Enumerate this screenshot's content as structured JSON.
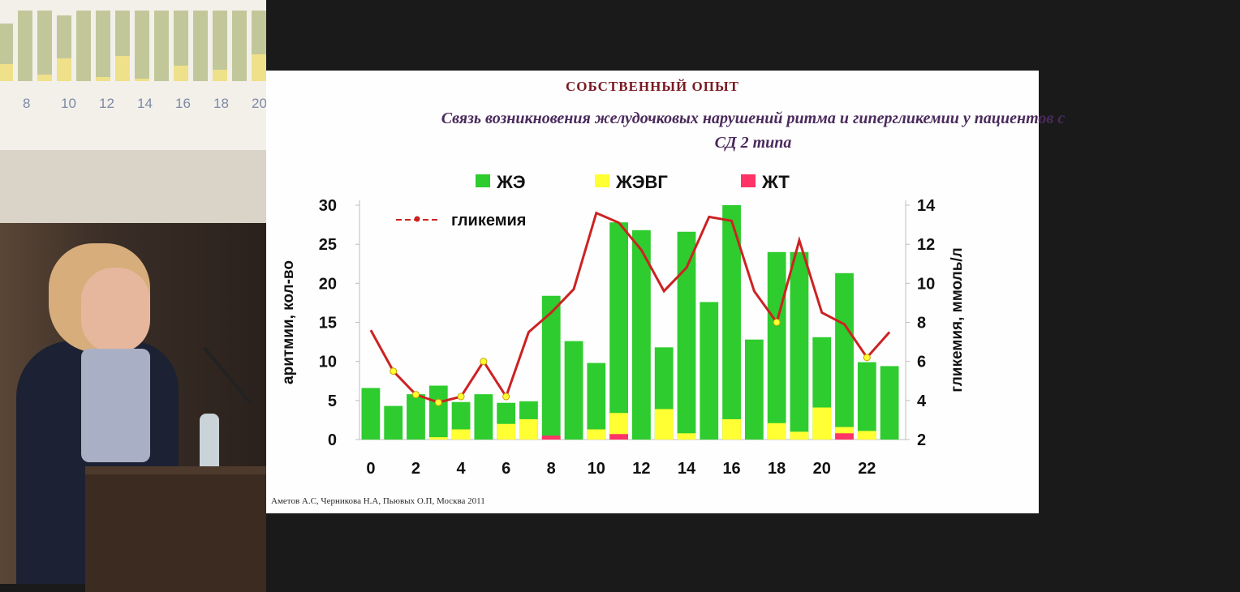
{
  "background_slide": {
    "x_ticks": [
      "8",
      "10",
      "12",
      "14",
      "16",
      "18",
      "20"
    ],
    "green_levels": [
      0.75,
      0.92,
      0.92,
      0.85,
      0.92,
      0.92,
      0.92,
      0.92,
      0.92,
      0.92,
      0.92,
      0.92,
      0.92,
      0.92
    ],
    "yellow_levels": [
      0.22,
      0.0,
      0.08,
      0.3,
      0.0,
      0.05,
      0.33,
      0.03,
      0.0,
      0.2,
      0.0,
      0.15,
      0.0,
      0.35
    ]
  },
  "slide": {
    "header": "СОБСТВЕННЫЙ ОПЫТ",
    "title": "Связь возникновения желудочковых нарушений ритма  и гипергликемии у пациентов с\nСД 2 типа",
    "citation": "Аметов А.С, Черникова Н.А, Пьювых О.П,  Москва 2011"
  },
  "chart_data": {
    "type": "bar",
    "x": [
      0,
      1,
      2,
      3,
      4,
      5,
      6,
      7,
      8,
      9,
      10,
      11,
      12,
      13,
      14,
      15,
      16,
      17,
      18,
      19,
      20,
      21,
      22,
      23
    ],
    "x_tick_labels": [
      "0",
      "2",
      "4",
      "6",
      "8",
      "10",
      "12",
      "14",
      "16",
      "18",
      "20",
      "22"
    ],
    "y_left_ticks": [
      "0",
      "5",
      "10",
      "15",
      "20",
      "25",
      "30"
    ],
    "y_right_ticks": [
      "2",
      "4",
      "6",
      "8",
      "10",
      "12",
      "14"
    ],
    "ylabel_left": "аритмии, кол-во",
    "ylabel_right": "гликемия, ммоль/л",
    "ylim_left": [
      0,
      30
    ],
    "ylim_right": [
      2,
      14
    ],
    "stacked": false,
    "series": [
      {
        "name": "ЖЭ",
        "color": "#2ecc2e",
        "values": [
          6.6,
          4.3,
          5.8,
          6.9,
          4.8,
          5.8,
          4.7,
          4.9,
          18.4,
          12.6,
          9.8,
          27.8,
          26.8,
          11.8,
          26.6,
          17.6,
          30.0,
          12.8,
          24.0,
          24.0,
          13.1,
          21.3,
          9.9,
          9.4
        ]
      },
      {
        "name": "ЖЭВГ",
        "color": "#ffff33",
        "values": [
          0,
          0,
          0,
          0.3,
          1.3,
          0,
          2.0,
          2.6,
          0,
          0,
          1.3,
          3.4,
          0,
          3.9,
          0.8,
          0,
          2.6,
          0,
          2.1,
          1.0,
          4.1,
          1.6,
          1.1,
          0
        ]
      },
      {
        "name": "ЖТ",
        "color": "#ff3366",
        "values": [
          0,
          0,
          0,
          0,
          0,
          0,
          0,
          0,
          0.5,
          0,
          0,
          0.7,
          0,
          0,
          0,
          0,
          0,
          0,
          0,
          0,
          0,
          0.8,
          0,
          0
        ]
      },
      {
        "name": "гликемия",
        "color": "#cc2222",
        "axis": "right",
        "type": "line",
        "values": [
          7.6,
          5.5,
          4.3,
          3.9,
          4.2,
          6.0,
          4.2,
          7.5,
          8.5,
          9.7,
          13.6,
          13.1,
          11.7,
          9.6,
          10.8,
          13.4,
          13.2,
          9.6,
          8.0,
          12.2,
          8.5,
          7.9,
          6.2,
          7.5
        ]
      }
    ],
    "glycemia_marker_points": [
      1,
      2,
      3,
      4,
      5,
      6,
      18,
      22
    ],
    "legend_position": "top"
  }
}
